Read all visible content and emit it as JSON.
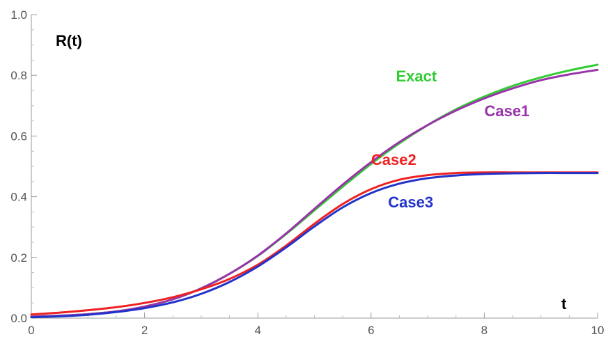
{
  "chart_data": {
    "type": "line",
    "title": "",
    "xlabel": "t",
    "ylabel": "R(t)",
    "xlim": [
      0,
      10
    ],
    "ylim": [
      0,
      1.0
    ],
    "x_ticks": [
      "0",
      "2",
      "4",
      "6",
      "8",
      "10"
    ],
    "y_ticks": [
      "0.0",
      "0.2",
      "0.4",
      "0.6",
      "0.8",
      "1.0"
    ],
    "grid": false,
    "legend": "inline labels",
    "x": [
      0,
      0.5,
      1,
      1.5,
      2,
      2.5,
      3,
      3.5,
      4,
      4.5,
      5,
      5.5,
      6,
      6.5,
      7,
      7.5,
      8,
      8.5,
      9,
      9.5,
      10
    ],
    "series": [
      {
        "name": "Exact",
        "color": "#33cc33",
        "values": [
          0.005,
          0.008,
          0.013,
          0.022,
          0.038,
          0.062,
          0.098,
          0.146,
          0.205,
          0.277,
          0.355,
          0.433,
          0.508,
          0.576,
          0.636,
          0.688,
          0.73,
          0.765,
          0.793,
          0.816,
          0.835
        ]
      },
      {
        "name": "Case1",
        "color": "#9933aa",
        "values": [
          0.005,
          0.008,
          0.013,
          0.022,
          0.038,
          0.062,
          0.098,
          0.146,
          0.206,
          0.279,
          0.36,
          0.44,
          0.514,
          0.58,
          0.636,
          0.684,
          0.724,
          0.757,
          0.784,
          0.803,
          0.818
        ]
      },
      {
        "name": "Case2",
        "color": "#ee2222",
        "values": [
          0.012,
          0.018,
          0.026,
          0.036,
          0.05,
          0.069,
          0.095,
          0.129,
          0.176,
          0.239,
          0.311,
          0.376,
          0.425,
          0.456,
          0.471,
          0.478,
          0.48,
          0.48,
          0.48,
          0.48,
          0.48
        ]
      },
      {
        "name": "Case3",
        "color": "#2233cc",
        "values": [
          0.003,
          0.006,
          0.011,
          0.02,
          0.033,
          0.052,
          0.08,
          0.119,
          0.17,
          0.233,
          0.302,
          0.365,
          0.412,
          0.443,
          0.461,
          0.47,
          0.475,
          0.477,
          0.478,
          0.478,
          0.478
        ]
      }
    ],
    "annotations": [
      {
        "text": "Exact",
        "series": "Exact",
        "x": 6.8,
        "y": 0.78
      },
      {
        "text": "Case1",
        "series": "Case1",
        "x": 8.4,
        "y": 0.665
      },
      {
        "text": "Case2",
        "series": "Case2",
        "x": 6.4,
        "y": 0.505
      },
      {
        "text": "Case3",
        "series": "Case3",
        "x": 6.7,
        "y": 0.365
      }
    ]
  }
}
